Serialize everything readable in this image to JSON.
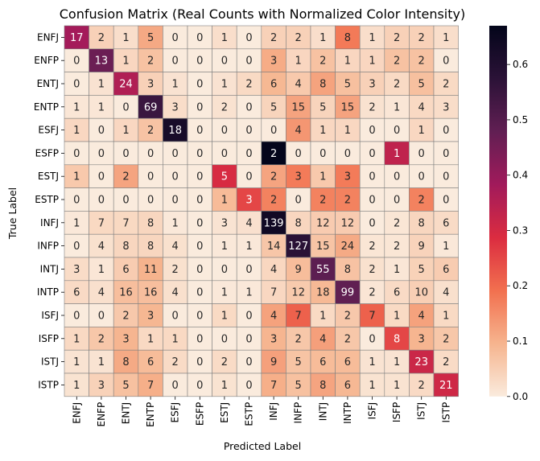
{
  "chart_data": {
    "type": "heatmap",
    "title": "Confusion Matrix (Real Counts with Normalized Color Intensity)",
    "xlabel": "Predicted Label",
    "ylabel": "True Label",
    "labels": [
      "ENFJ",
      "ENFP",
      "ENTJ",
      "ENTP",
      "ESFJ",
      "ESFP",
      "ESTJ",
      "ESTP",
      "INFJ",
      "INFP",
      "INTJ",
      "INTP",
      "ISFJ",
      "ISFP",
      "ISTJ",
      "ISTP"
    ],
    "matrix": [
      [
        17,
        2,
        1,
        5,
        0,
        0,
        1,
        0,
        2,
        2,
        1,
        8,
        1,
        2,
        2,
        1
      ],
      [
        0,
        13,
        1,
        2,
        0,
        0,
        0,
        0,
        3,
        1,
        2,
        1,
        1,
        2,
        2,
        0
      ],
      [
        0,
        1,
        24,
        3,
        1,
        0,
        1,
        2,
        6,
        4,
        8,
        5,
        3,
        2,
        5,
        2
      ],
      [
        1,
        1,
        0,
        69,
        3,
        0,
        2,
        0,
        5,
        15,
        5,
        15,
        2,
        1,
        4,
        3
      ],
      [
        1,
        0,
        1,
        2,
        18,
        0,
        0,
        0,
        0,
        4,
        1,
        1,
        0,
        0,
        1,
        0
      ],
      [
        0,
        0,
        0,
        0,
        0,
        0,
        0,
        0,
        2,
        0,
        0,
        0,
        0,
        1,
        0,
        0
      ],
      [
        1,
        0,
        2,
        0,
        0,
        0,
        5,
        0,
        2,
        3,
        1,
        3,
        0,
        0,
        0,
        0
      ],
      [
        0,
        0,
        0,
        0,
        0,
        0,
        1,
        3,
        2,
        0,
        2,
        2,
        0,
        0,
        2,
        0
      ],
      [
        1,
        7,
        7,
        8,
        1,
        0,
        3,
        4,
        139,
        8,
        12,
        12,
        0,
        2,
        8,
        6
      ],
      [
        0,
        4,
        8,
        8,
        4,
        0,
        1,
        1,
        14,
        127,
        15,
        24,
        2,
        2,
        9,
        1
      ],
      [
        3,
        1,
        6,
        11,
        2,
        0,
        0,
        0,
        4,
        9,
        55,
        8,
        2,
        1,
        5,
        6
      ],
      [
        6,
        4,
        16,
        16,
        4,
        0,
        1,
        1,
        7,
        12,
        18,
        99,
        2,
        6,
        10,
        4
      ],
      [
        0,
        0,
        2,
        3,
        0,
        0,
        1,
        0,
        4,
        7,
        1,
        2,
        7,
        1,
        4,
        1
      ],
      [
        1,
        2,
        3,
        1,
        1,
        0,
        0,
        0,
        3,
        2,
        4,
        2,
        0,
        8,
        3,
        2
      ],
      [
        1,
        1,
        8,
        6,
        2,
        0,
        2,
        0,
        9,
        5,
        6,
        6,
        1,
        1,
        23,
        2
      ],
      [
        1,
        3,
        5,
        7,
        0,
        0,
        1,
        0,
        7,
        5,
        8,
        6,
        1,
        1,
        2,
        21
      ]
    ],
    "colorbar": {
      "range": [
        0.0,
        0.67
      ],
      "ticks": [
        "0.0",
        "0.1",
        "0.2",
        "0.3",
        "0.4",
        "0.5",
        "0.6"
      ],
      "tick_values": [
        0.0,
        0.1,
        0.2,
        0.3,
        0.4,
        0.5,
        0.6
      ]
    },
    "colormap": [
      "#faebdd",
      "#f6b48e",
      "#f2704f",
      "#db2c40",
      "#a11a5b",
      "#611f53",
      "#2b1237",
      "#03051a"
    ]
  }
}
